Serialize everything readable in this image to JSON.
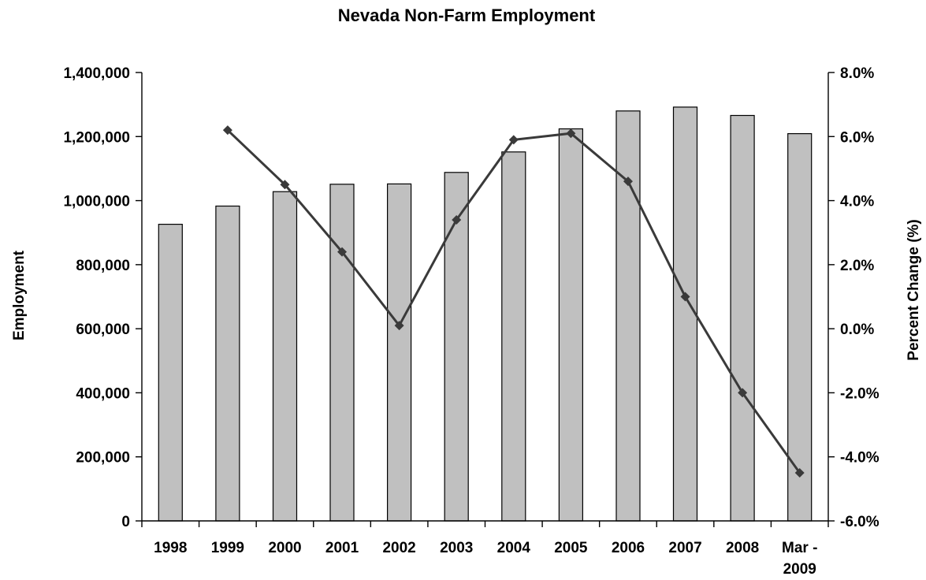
{
  "chart_data": {
    "type": "bar",
    "title": "Nevada Non-Farm Employment",
    "xlabel": "",
    "ylabel": "Employment",
    "y2label": "Percent Change (%)",
    "categories": [
      {
        "line1": "1998",
        "line2": ""
      },
      {
        "line1": "1999",
        "line2": ""
      },
      {
        "line1": "2000",
        "line2": ""
      },
      {
        "line1": "2001",
        "line2": ""
      },
      {
        "line1": "2002",
        "line2": ""
      },
      {
        "line1": "2003",
        "line2": ""
      },
      {
        "line1": "2004",
        "line2": ""
      },
      {
        "line1": "2005",
        "line2": ""
      },
      {
        "line1": "2006",
        "line2": ""
      },
      {
        "line1": "2007",
        "line2": ""
      },
      {
        "line1": "2008",
        "line2": ""
      },
      {
        "line1": "Mar -",
        "line2": "2009"
      }
    ],
    "ylim": [
      0,
      1400000
    ],
    "y2lim": [
      -6.0,
      8.0
    ],
    "yticks": [
      "0",
      "200,000",
      "400,000",
      "600,000",
      "800,000",
      "1,000,000",
      "1,200,000",
      "1,400,000"
    ],
    "y2ticks": [
      "-6.0%",
      "-4.0%",
      "-2.0%",
      "0.0%",
      "2.0%",
      "4.0%",
      "6.0%",
      "8.0%"
    ],
    "grid": false,
    "legend": "none",
    "series": [
      {
        "type": "bar",
        "axis": "left",
        "color": "#c0c0c0",
        "values": [
          926000,
          983000,
          1028000,
          1051000,
          1052000,
          1088000,
          1152000,
          1224000,
          1280000,
          1292000,
          1266000,
          1209000
        ]
      },
      {
        "type": "line",
        "axis": "right",
        "color": "#3a3a3a",
        "marker": "diamond",
        "values": [
          null,
          6.2,
          4.5,
          2.4,
          0.1,
          3.4,
          5.9,
          6.1,
          4.6,
          1.0,
          -2.0,
          -4.5
        ]
      }
    ]
  }
}
